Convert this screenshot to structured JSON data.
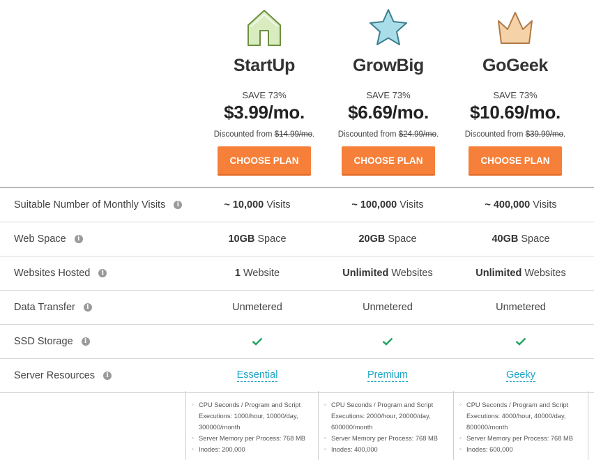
{
  "plans": [
    {
      "name": "StartUp",
      "icon": "house-icon",
      "save": "SAVE 73%",
      "price": "$3.99/mo.",
      "discount_prefix": "Discounted from",
      "old_price": "$14.99/mo",
      "cta": "CHOOSE PLAN"
    },
    {
      "name": "GrowBig",
      "icon": "star-icon",
      "save": "SAVE 73%",
      "price": "$6.69/mo.",
      "discount_prefix": "Discounted from",
      "old_price": "$24.99/mo",
      "cta": "CHOOSE PLAN"
    },
    {
      "name": "GoGeek",
      "icon": "crown-icon",
      "save": "SAVE 73%",
      "price": "$10.69/mo.",
      "discount_prefix": "Discounted from",
      "old_price": "$39.99/mo",
      "cta": "CHOOSE PLAN"
    }
  ],
  "features": {
    "visits": {
      "label": "Suitable Number of Monthly Visits",
      "values": [
        {
          "bold": "~ 10,000",
          "rest": " Visits"
        },
        {
          "bold": "~ 100,000",
          "rest": " Visits"
        },
        {
          "bold": "~ 400,000",
          "rest": " Visits"
        }
      ]
    },
    "web_space": {
      "label": "Web Space",
      "values": [
        {
          "bold": "10GB",
          "rest": " Space"
        },
        {
          "bold": "20GB",
          "rest": " Space"
        },
        {
          "bold": "40GB",
          "rest": " Space"
        }
      ]
    },
    "websites": {
      "label": "Websites Hosted",
      "values": [
        {
          "bold": "1",
          "rest": " Website"
        },
        {
          "bold": "Unlimited",
          "rest": " Websites"
        },
        {
          "bold": "Unlimited",
          "rest": " Websites"
        }
      ]
    },
    "transfer": {
      "label": "Data Transfer",
      "values": [
        "Unmetered",
        "Unmetered",
        "Unmetered"
      ]
    },
    "ssd": {
      "label": "SSD Storage",
      "check_icon": "check-icon"
    },
    "resources": {
      "label": "Server Resources",
      "values": [
        "Essential",
        "Premium",
        "Geeky"
      ]
    }
  },
  "resource_details": [
    {
      "cpu": "CPU Seconds / Program and Script Executions: 1000/hour, 10000/day, 300000/month",
      "memory": "Server Memory per Process: 768 MB",
      "inodes": "Inodes: 200,000"
    },
    {
      "cpu": "CPU Seconds / Program and Script Executions: 2000/hour, 20000/day, 600000/month",
      "memory": "Server Memory per Process: 768 MB",
      "inodes": "Inodes: 400,000"
    },
    {
      "cpu": "CPU Seconds / Program and Script Executions: 4000/hour, 40000/day, 800000/month",
      "memory": "Server Memory per Process: 768 MB",
      "inodes": "Inodes: 600,000"
    }
  ],
  "colors": {
    "cta": "#f6803a",
    "house_fill": "#d9ecc0",
    "house_stroke": "#6b8f3e",
    "star_fill": "#a9dde8",
    "star_stroke": "#3d7f90",
    "crown_fill": "#f6d2a8",
    "crown_stroke": "#b07a45",
    "check": "#27a567",
    "link": "#1aa3c4"
  }
}
